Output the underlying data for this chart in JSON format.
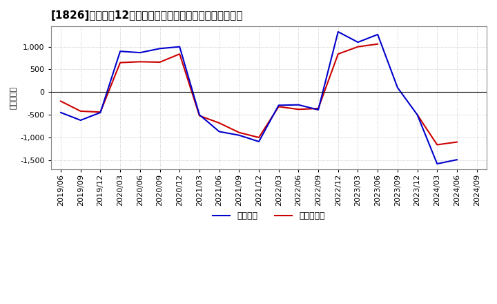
{
  "title": "[1826]　利益の12か月移動合計の対前年同期増減額の推移",
  "ylabel": "（百万円）",
  "legend_blue": "経常利益",
  "legend_red": "当期純利益",
  "background_color": "#ffffff",
  "plot_bg_color": "#ffffff",
  "grid_color": "#aaaaaa",
  "line_color_blue": "#0000cc",
  "line_color_red": "#cc0000",
  "ylim": [
    -1700,
    1450
  ],
  "yticks": [
    -1500,
    -1000,
    -500,
    0,
    500,
    1000
  ],
  "dates": [
    "2019/06",
    "2019/09",
    "2019/12",
    "2020/03",
    "2020/06",
    "2020/09",
    "2020/12",
    "2021/03",
    "2021/06",
    "2021/09",
    "2021/12",
    "2022/03",
    "2022/06",
    "2022/09",
    "2022/12",
    "2023/03",
    "2023/06",
    "2023/09",
    "2023/12",
    "2024/03",
    "2024/06",
    "2024/09"
  ],
  "blue_values": [
    -450,
    -620,
    -450,
    900,
    870,
    960,
    1000,
    -500,
    -870,
    -950,
    -1090,
    -290,
    -280,
    -390,
    1330,
    1100,
    1270,
    100,
    -500,
    -1580,
    -1490,
    null
  ],
  "red_values": [
    -200,
    -420,
    -440,
    650,
    670,
    660,
    840,
    -520,
    -680,
    -890,
    -1000,
    -320,
    -380,
    -360,
    840,
    1000,
    1060,
    null,
    -500,
    -1160,
    -1100,
    null
  ]
}
